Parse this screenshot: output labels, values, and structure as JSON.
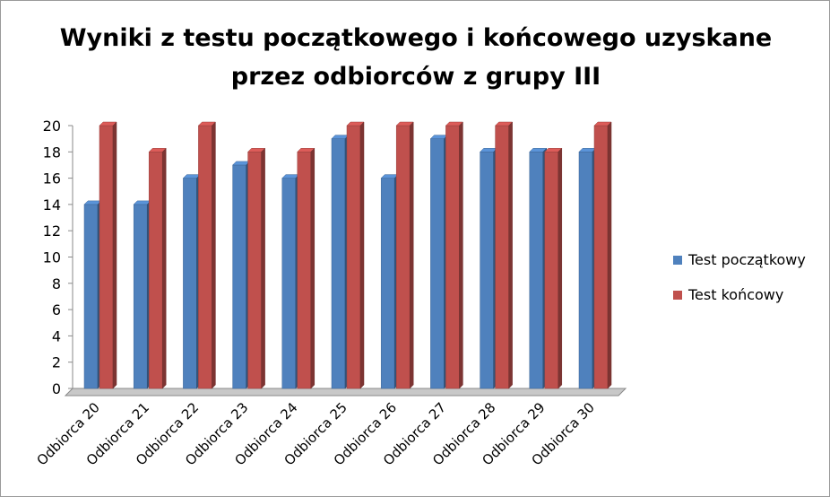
{
  "chart_data": {
    "type": "bar",
    "title_lines": [
      "Wyniki z testu początkowego i końcowego uzyskane",
      "przez odbiorców z grupy III"
    ],
    "categories": [
      "Odbiorca 20",
      "Odbiorca 21",
      "Odbiorca 22",
      "Odbiorca 23",
      "Odbiorca 24",
      "Odbiorca 25",
      "Odbiorca 26",
      "Odbiorca 27",
      "Odbiorca 28",
      "Odbiorca 29",
      "Odbiorca 30"
    ],
    "series": [
      {
        "name": "Test początkowy",
        "color": "#4f81bd",
        "values": [
          14,
          14,
          16,
          17,
          16,
          19,
          16,
          19,
          18,
          18,
          18
        ]
      },
      {
        "name": "Test końcowy",
        "color": "#c0504d",
        "values": [
          20,
          18,
          20,
          18,
          18,
          20,
          20,
          20,
          20,
          18,
          20
        ]
      }
    ],
    "xlabel": "",
    "ylabel": "",
    "ylim": [
      0,
      20
    ],
    "yticks": [
      "0",
      "2",
      "4",
      "6",
      "8",
      "10",
      "12",
      "14",
      "16",
      "18",
      "20"
    ],
    "grid": false,
    "legend_position": "right",
    "style": "3d-column"
  }
}
